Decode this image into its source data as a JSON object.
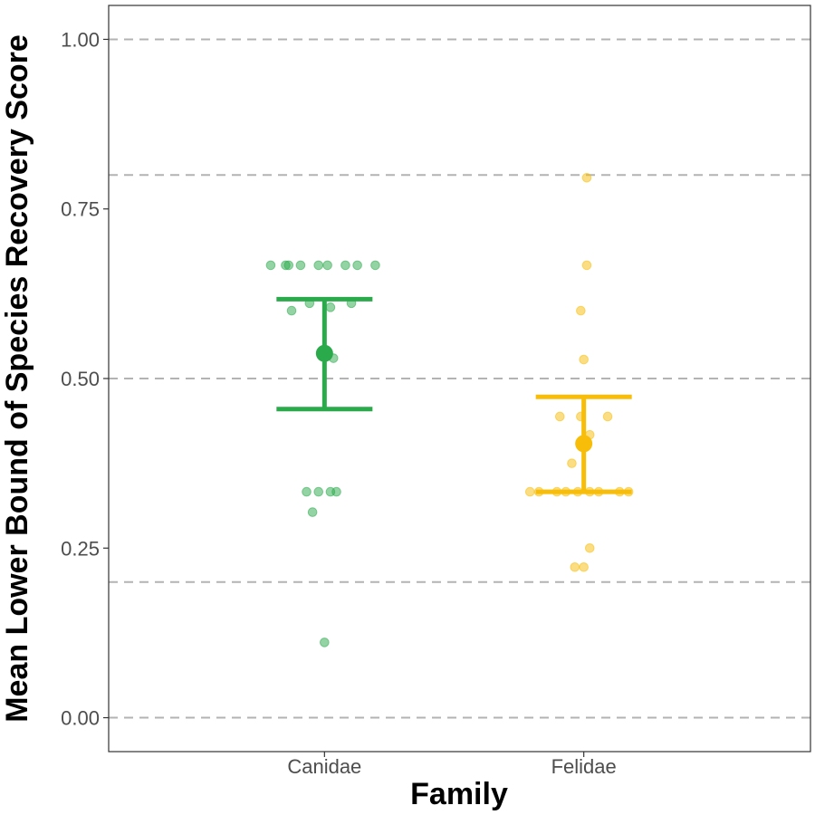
{
  "chart_data": {
    "type": "scatter",
    "xlabel": "Family",
    "ylabel": "Mean Lower Bound of Species Recovery Score",
    "categories": [
      "Canidae",
      "Felidae"
    ],
    "ylim": [
      -0.05,
      1.05
    ],
    "yticks": [
      0.0,
      0.25,
      0.5,
      0.75,
      1.0
    ],
    "ytick_labels": [
      "0.00",
      "0.25",
      "0.50",
      "0.75",
      "1.00"
    ],
    "reference_lines": [
      0.0,
      0.2,
      0.5,
      0.8,
      1.0
    ],
    "grid": false,
    "series": [
      {
        "category": "Canidae",
        "color": "#2AAA4A",
        "mean": 0.537,
        "ci_lower": 0.455,
        "ci_upper": 0.617,
        "points": [
          {
            "x_offset": -0.18,
            "y": 0.667
          },
          {
            "x_offset": -0.13,
            "y": 0.667
          },
          {
            "x_offset": -0.12,
            "y": 0.667
          },
          {
            "x_offset": -0.08,
            "y": 0.667
          },
          {
            "x_offset": -0.02,
            "y": 0.667
          },
          {
            "x_offset": 0.01,
            "y": 0.667
          },
          {
            "x_offset": 0.07,
            "y": 0.667
          },
          {
            "x_offset": 0.11,
            "y": 0.667
          },
          {
            "x_offset": 0.17,
            "y": 0.667
          },
          {
            "x_offset": -0.05,
            "y": 0.611
          },
          {
            "x_offset": 0.09,
            "y": 0.611
          },
          {
            "x_offset": -0.11,
            "y": 0.6
          },
          {
            "x_offset": 0.02,
            "y": 0.605
          },
          {
            "x_offset": 0.03,
            "y": 0.53
          },
          {
            "x_offset": -0.06,
            "y": 0.333
          },
          {
            "x_offset": -0.02,
            "y": 0.333
          },
          {
            "x_offset": 0.02,
            "y": 0.333
          },
          {
            "x_offset": 0.04,
            "y": 0.333
          },
          {
            "x_offset": -0.04,
            "y": 0.303
          },
          {
            "x_offset": 0.0,
            "y": 0.111
          }
        ]
      },
      {
        "category": "Felidae",
        "color": "#F7BD08",
        "mean": 0.404,
        "ci_lower": 0.333,
        "ci_upper": 0.473,
        "points": [
          {
            "x_offset": 0.01,
            "y": 0.796
          },
          {
            "x_offset": 0.01,
            "y": 0.667
          },
          {
            "x_offset": -0.01,
            "y": 0.6
          },
          {
            "x_offset": 0.0,
            "y": 0.528
          },
          {
            "x_offset": -0.08,
            "y": 0.444
          },
          {
            "x_offset": -0.01,
            "y": 0.444
          },
          {
            "x_offset": 0.08,
            "y": 0.444
          },
          {
            "x_offset": 0.02,
            "y": 0.417
          },
          {
            "x_offset": -0.04,
            "y": 0.375
          },
          {
            "x_offset": -0.18,
            "y": 0.333
          },
          {
            "x_offset": -0.15,
            "y": 0.333
          },
          {
            "x_offset": -0.09,
            "y": 0.333
          },
          {
            "x_offset": -0.06,
            "y": 0.333
          },
          {
            "x_offset": -0.02,
            "y": 0.333
          },
          {
            "x_offset": 0.02,
            "y": 0.333
          },
          {
            "x_offset": 0.05,
            "y": 0.333
          },
          {
            "x_offset": 0.12,
            "y": 0.333
          },
          {
            "x_offset": 0.15,
            "y": 0.333
          },
          {
            "x_offset": 0.02,
            "y": 0.25
          },
          {
            "x_offset": -0.03,
            "y": 0.222
          },
          {
            "x_offset": 0.0,
            "y": 0.222
          }
        ]
      }
    ]
  }
}
